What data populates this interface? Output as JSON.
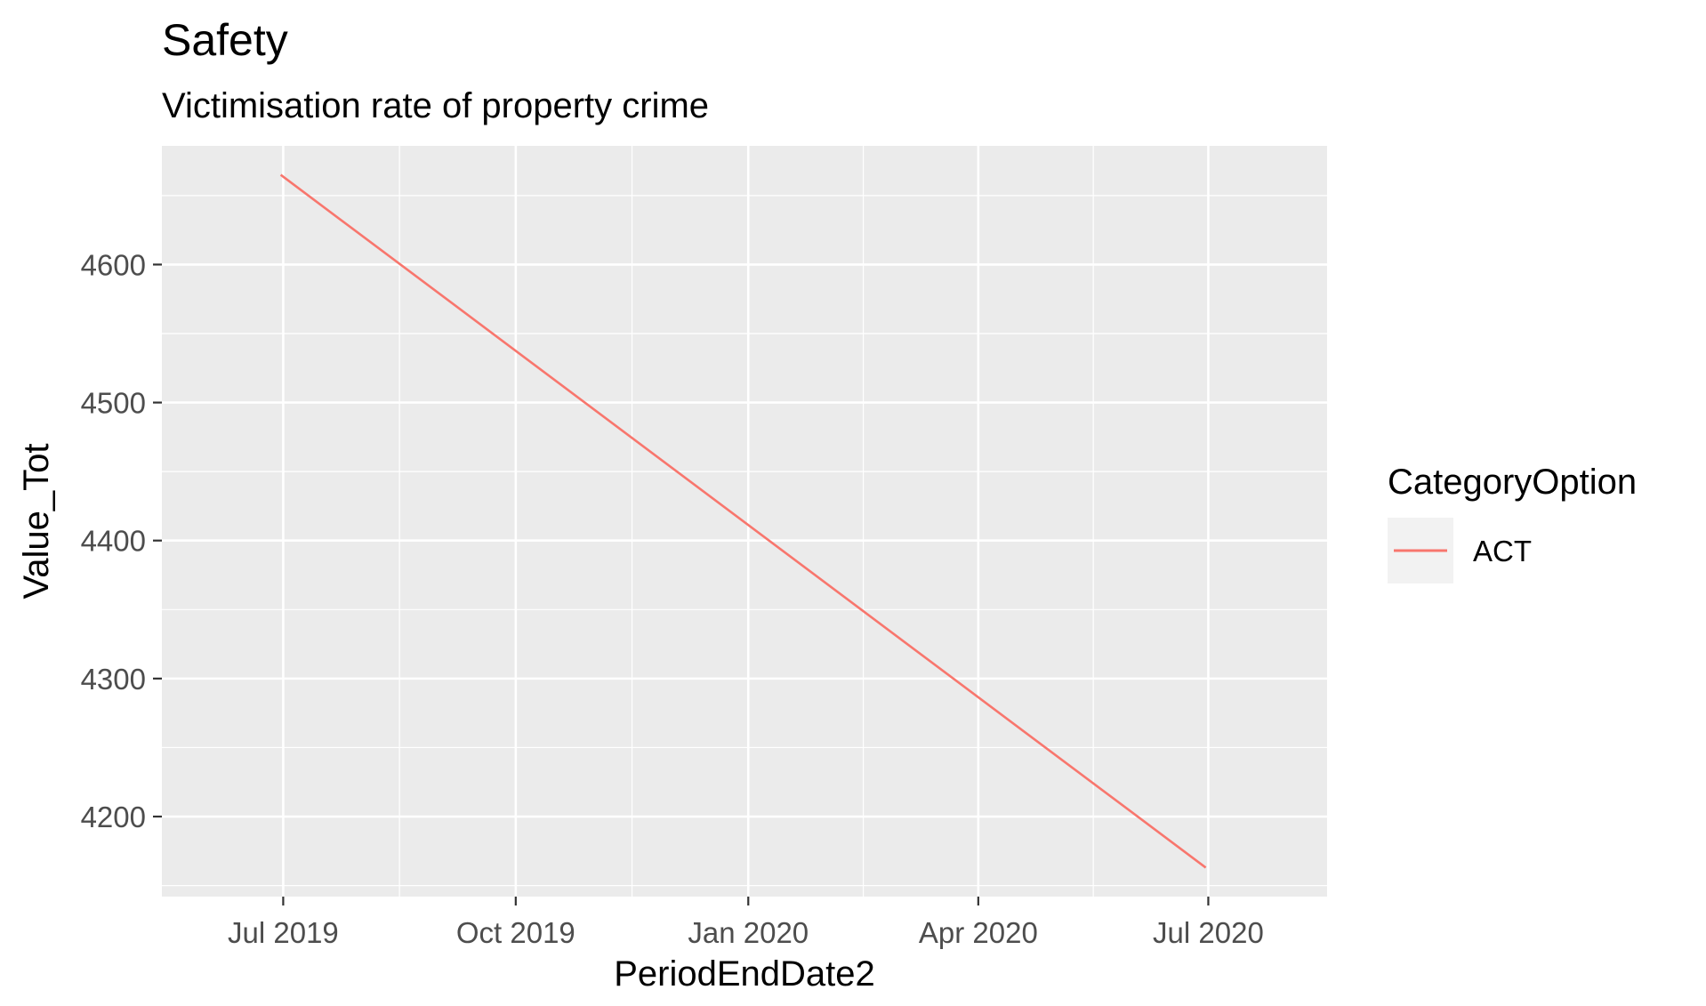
{
  "chart_data": {
    "type": "line",
    "title": "Safety",
    "subtitle": "Victimisation rate of property crime",
    "xlabel": "PeriodEndDate2",
    "ylabel": "Value_Tot",
    "x_ticks": [
      {
        "label": "Jul 2019",
        "date": "2019-07-01"
      },
      {
        "label": "Oct 2019",
        "date": "2019-10-01"
      },
      {
        "label": "Jan 2020",
        "date": "2020-01-01"
      },
      {
        "label": "Apr 2020",
        "date": "2020-04-01"
      },
      {
        "label": "Jul 2020",
        "date": "2020-07-01"
      }
    ],
    "y_ticks": [
      4200,
      4300,
      4400,
      4500,
      4600
    ],
    "xlim": [
      "2019-05-14",
      "2020-08-17"
    ],
    "ylim": [
      4142,
      4686
    ],
    "grid": true,
    "legend": {
      "title": "CategoryOption",
      "placement": "right"
    },
    "series": [
      {
        "name": "ACT",
        "color": "#F8766D",
        "points": [
          {
            "x": "2019-06-30",
            "y": 4665
          },
          {
            "x": "2020-06-30",
            "y": 4163
          }
        ]
      }
    ]
  }
}
